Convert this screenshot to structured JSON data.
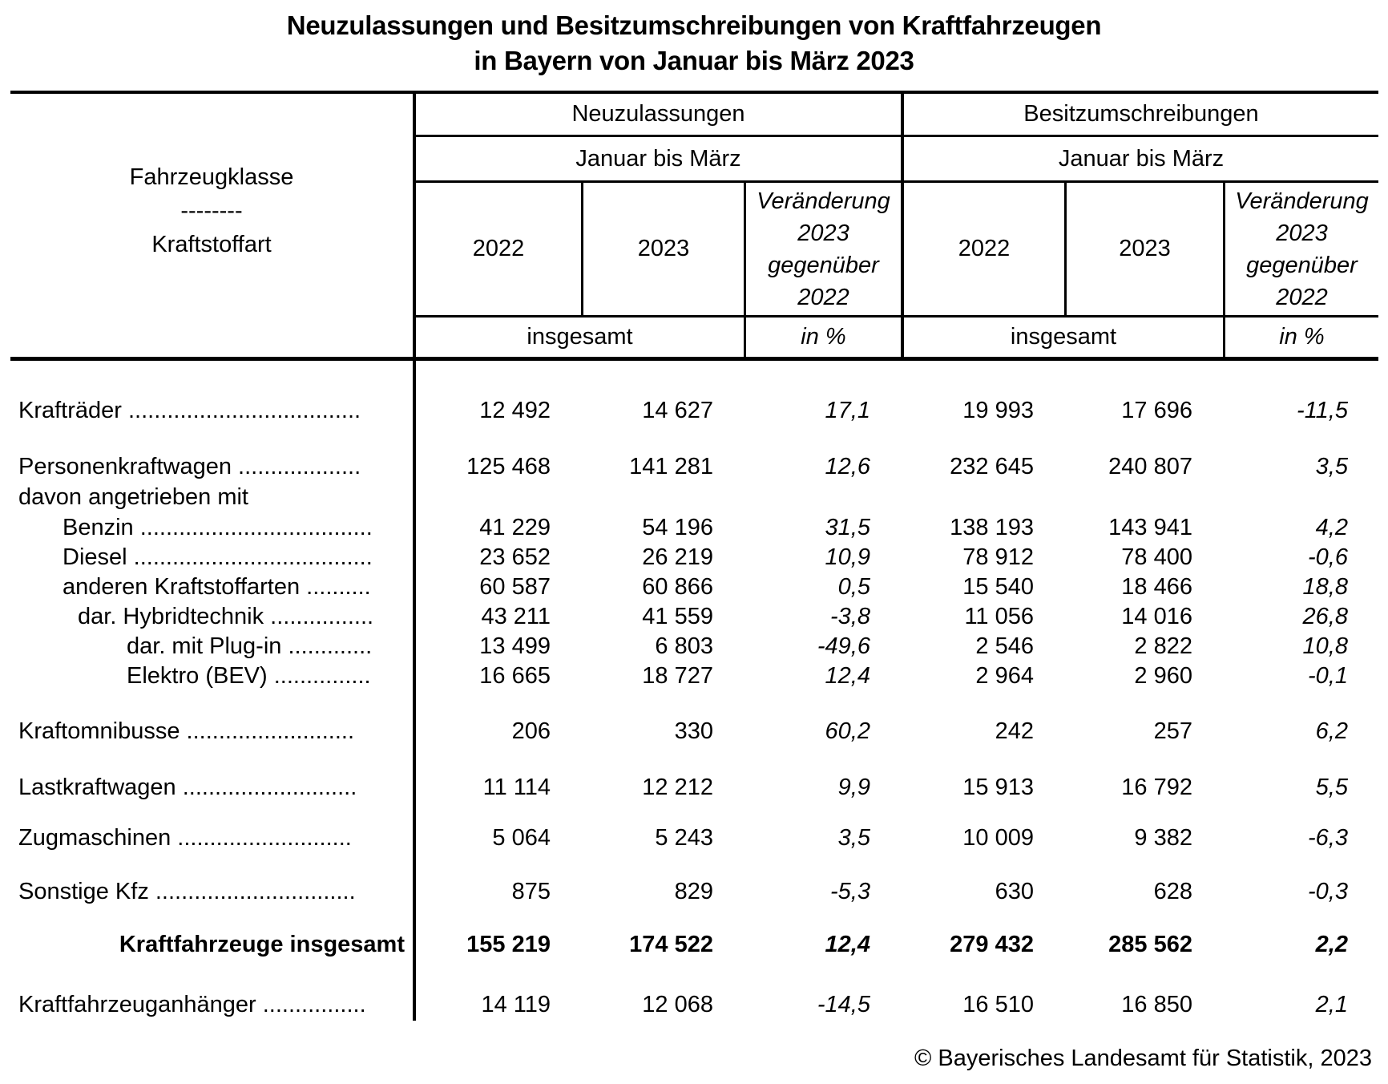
{
  "title": {
    "line1": "Neuzulassungen und Besitzumschreibungen von Kraftfahrzeugen",
    "line2": "in Bayern von Januar bis März 2023"
  },
  "table": {
    "stub": {
      "line1": "Fahrzeugklasse",
      "divider": "--------",
      "line2": "Kraftstoffart"
    },
    "groups": [
      {
        "title": "Neuzulassungen",
        "period": "Januar bis März",
        "year1": "2022",
        "year2": "2023",
        "change": "Veränderung 2023 gegenüber 2022",
        "unit_total": "insgesamt",
        "unit_pct": "in %"
      },
      {
        "title": "Besitzumschreibungen",
        "period": "Januar bis März",
        "year1": "2022",
        "year2": "2023",
        "change": "Veränderung 2023 gegenüber 2022",
        "unit_total": "insgesamt",
        "unit_pct": "in %"
      }
    ],
    "rows": [
      {
        "id": "kraftraeder",
        "label": "Krafträder ....................................",
        "level": 0,
        "style": "normal",
        "values": [
          "12 492",
          "14 627",
          "17,1",
          "19 993",
          "17 696",
          "-11,5"
        ]
      },
      {
        "id": "personenkraftwagen",
        "label": "Personenkraftwagen ...................",
        "level": 0,
        "style": "normal",
        "values": [
          "125 468",
          "141 281",
          "12,6",
          "232 645",
          "240 807",
          "3,5"
        ]
      },
      {
        "id": "davon-angetrieben-mit",
        "label": "davon angetrieben mit",
        "level": 0,
        "style": "subheader",
        "values": [
          "",
          "",
          "",
          "",
          "",
          ""
        ]
      },
      {
        "id": "benzin",
        "label": "Benzin ....................................",
        "level": 1,
        "style": "normal",
        "values": [
          "41 229",
          "54 196",
          "31,5",
          "138 193",
          "143 941",
          "4,2"
        ]
      },
      {
        "id": "diesel",
        "label": "Diesel .....................................",
        "level": 1,
        "style": "normal",
        "values": [
          "23 652",
          "26 219",
          "10,9",
          "78 912",
          "78 400",
          "-0,6"
        ]
      },
      {
        "id": "andere-kraftstoffarten",
        "label": "anderen Kraftstoffarten ..........",
        "level": 1,
        "style": "normal",
        "values": [
          "60 587",
          "60 866",
          "0,5",
          "15 540",
          "18 466",
          "18,8"
        ]
      },
      {
        "id": "hybridtechnik",
        "label": "dar. Hybridtechnik ................",
        "level": 2,
        "style": "normal",
        "values": [
          "43 211",
          "41 559",
          "-3,8",
          "11 056",
          "14 016",
          "26,8"
        ]
      },
      {
        "id": "plug-in",
        "label": "dar. mit Plug-in .............",
        "level": 3,
        "style": "normal",
        "values": [
          "13 499",
          "6 803",
          "-49,6",
          "2 546",
          "2 822",
          "10,8"
        ]
      },
      {
        "id": "elektro-bev",
        "label": "Elektro (BEV) ...............",
        "level": 3,
        "style": "normal",
        "values": [
          "16 665",
          "18 727",
          "12,4",
          "2 964",
          "2 960",
          "-0,1"
        ]
      },
      {
        "id": "kraftomnibusse",
        "label": "Kraftomnibusse ..........................",
        "level": 0,
        "style": "normal",
        "values": [
          "206",
          "330",
          "60,2",
          "242",
          "257",
          "6,2"
        ]
      },
      {
        "id": "lastkraftwagen",
        "label": "Lastkraftwagen ...........................",
        "level": 0,
        "style": "normal",
        "values": [
          "11 114",
          "12 212",
          "9,9",
          "15 913",
          "16 792",
          "5,5"
        ]
      },
      {
        "id": "zugmaschinen",
        "label": "Zugmaschinen ...........................",
        "level": 0,
        "style": "normal",
        "values": [
          "5 064",
          "5 243",
          "3,5",
          "10 009",
          "9 382",
          "-6,3"
        ]
      },
      {
        "id": "sonstige-kfz",
        "label": "Sonstige Kfz ...............................",
        "level": 0,
        "style": "normal",
        "values": [
          "875",
          "829",
          "-5,3",
          "630",
          "628",
          "-0,3"
        ]
      },
      {
        "id": "kraftfahrzeuge-insgesamt",
        "label": "Kraftfahrzeuge insgesamt",
        "level": 0,
        "style": "total",
        "values": [
          "155 219",
          "174 522",
          "12,4",
          "279 432",
          "285 562",
          "2,2"
        ]
      },
      {
        "id": "kraftfahrzeuganhaenger",
        "label": "Kraftfahrzeuganhänger ................",
        "level": 0,
        "style": "normal",
        "values": [
          "14 119",
          "12 068",
          "-14,5",
          "16 510",
          "16 850",
          "2,1"
        ]
      }
    ]
  },
  "footer": {
    "copyright": "© Bayerisches Landesamt für Statistik, 2023"
  }
}
